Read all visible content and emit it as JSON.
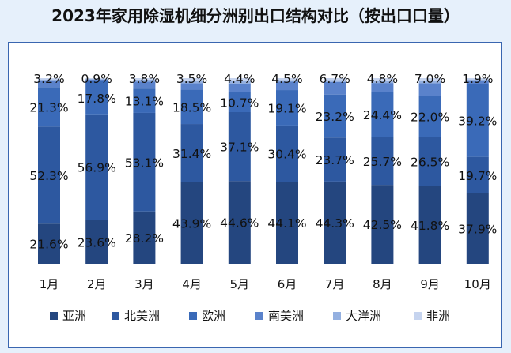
{
  "title": "2023年家用除湿机细分洲别出口结构对比（按出口口量）",
  "chart_data": {
    "type": "bar",
    "stacked": true,
    "percent": true,
    "categories": [
      "1月",
      "2月",
      "3月",
      "4月",
      "5月",
      "6月",
      "7月",
      "8月",
      "9月",
      "10月"
    ],
    "ylim": [
      0,
      100
    ],
    "grid": false,
    "legend_position": "bottom",
    "series": [
      {
        "name": "亚洲",
        "color": "#24467f",
        "values": [
          21.6,
          23.6,
          28.2,
          43.9,
          44.6,
          44.1,
          44.3,
          42.5,
          41.8,
          37.9
        ]
      },
      {
        "name": "北美洲",
        "color": "#2d58a0",
        "values": [
          52.3,
          56.9,
          53.1,
          31.4,
          37.1,
          30.4,
          23.7,
          25.7,
          26.5,
          19.7
        ]
      },
      {
        "name": "欧洲",
        "color": "#3a6ab8",
        "values": [
          21.3,
          17.8,
          13.1,
          18.5,
          10.7,
          19.1,
          23.2,
          24.4,
          22.0,
          39.2
        ]
      },
      {
        "name": "南美洲",
        "color": "#5a82cb",
        "values": [
          3.2,
          0.9,
          3.8,
          3.5,
          4.4,
          4.5,
          6.7,
          4.8,
          7.0,
          1.9
        ]
      },
      {
        "name": "大洋洲",
        "color": "#94b0e0",
        "values": [
          0.9,
          0.4,
          1.0,
          1.5,
          1.8,
          0.9,
          1.1,
          1.4,
          1.4,
          0.6
        ]
      },
      {
        "name": "非洲",
        "color": "#c6d4ef",
        "values": [
          0.7,
          0.4,
          0.8,
          1.2,
          1.4,
          1.0,
          1.0,
          1.2,
          1.3,
          0.7
        ]
      }
    ],
    "labeled_series": [
      "亚洲",
      "北美洲",
      "欧洲",
      "南美洲"
    ]
  }
}
